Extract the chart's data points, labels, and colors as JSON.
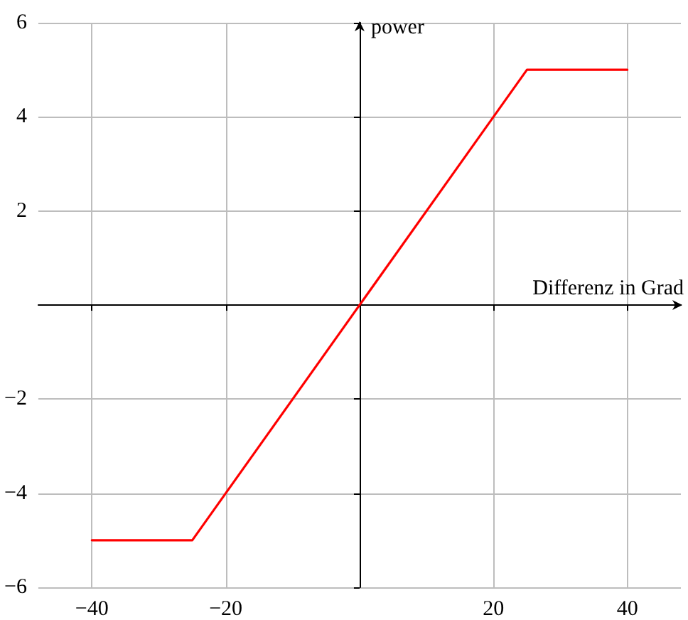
{
  "chart_data": {
    "type": "line",
    "xlabel": "Differenz in Grad",
    "ylabel": "power",
    "series": [
      {
        "color": "#ff0000",
        "x": [
          -40,
          -25,
          25,
          40
        ],
        "values": [
          -5,
          -5,
          5,
          5
        ]
      }
    ],
    "xlim": [
      -48,
      48
    ],
    "xticks": [
      -40,
      -20,
      {
        "value": 0,
        "label": null
      },
      20,
      40
    ],
    "ylim": [
      -6,
      6
    ],
    "yticks": [
      -6,
      -4,
      -2,
      {
        "value": 0,
        "label": null
      },
      2,
      4,
      6
    ],
    "grid": true,
    "marker": "none",
    "line_style": "solid"
  }
}
